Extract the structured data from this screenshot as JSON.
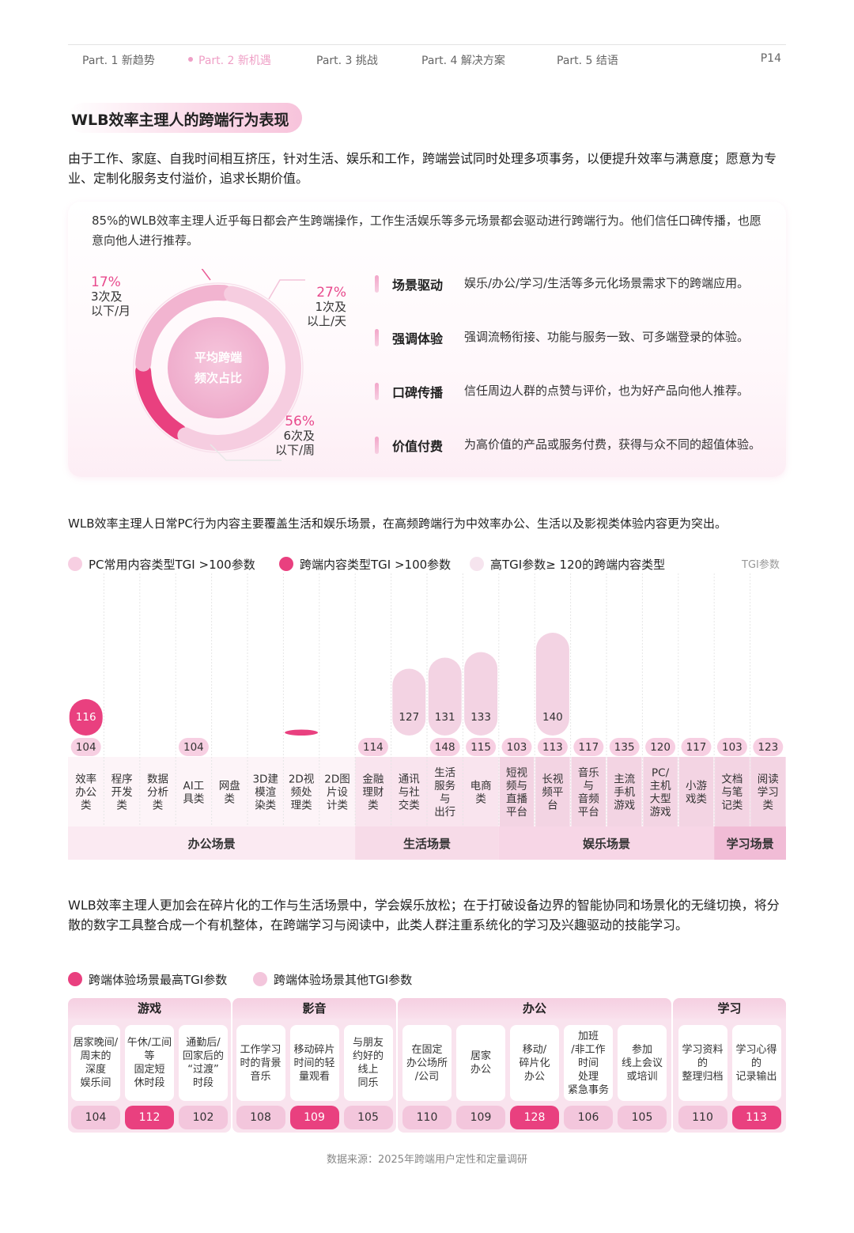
{
  "nav": {
    "items": [
      "Part. 1 新趋势",
      "Part. 2 新机遇",
      "Part. 3 挑战",
      "Part. 4 解决方案",
      "Part. 5 结语"
    ],
    "active_index": 1,
    "page": "P14",
    "active_color": "#ef9fc6"
  },
  "title": "WLB效率主理人的跨端行为表现",
  "intro": "由于工作、家庭、自我时间相互挤压，针对生活、娱乐和工作，跨端尝试同时处理多项事务，以便提升效率与满意度；愿意为专业、定制化服务支付溢价，追求长期价值。",
  "card": {
    "text": "85%的WLB效率主理人近乎每日都会产生跨端操作，工作生活娱乐等多元场景都会驱动进行跨端行为。他们信任口碑传播，也愿意向他人进行推荐。",
    "donut_center_line1": "平均跨端",
    "donut_center_line2": "频次占比",
    "features": [
      {
        "title": "场景驱动",
        "desc": "娱乐/办公/学习/生活等多元化场景需求下的跨端应用。"
      },
      {
        "title": "强调体验",
        "desc": "强调流畅衔接、功能与服务一致、可多端登录的体验。"
      },
      {
        "title": "口碑传播",
        "desc": "信任周边人群的点赞与评价，也为好产品向他人推荐。"
      },
      {
        "title": "价值付费",
        "desc": "为高价值的产品或服务付费，获得与众不同的超值体验。"
      }
    ]
  },
  "para2": "WLB效率主理人日常PC行为内容主要覆盖生活和娱乐场景，在高频跨端行为中效率办公、生活以及影视类体验内容更为突出。",
  "chart1_legend": [
    {
      "label": "PC常用内容类型TGI >100参数",
      "color": "#f7cfe2"
    },
    {
      "label": "跨端内容类型TGI >100参数",
      "color": "#e9407f"
    },
    {
      "label": "高TGI参数≥ 120的跨端内容类型",
      "color": "#f6e4ee"
    }
  ],
  "chart1_unit": "TGI参数",
  "para3": "WLB效率主理人更加会在碎片化的工作与生活场景中，学会娱乐放松；在于打破设备边界的智能协同和场景化的无缝切换，将分散的数字工具整合成一个有机整体，在跨端学习与阅读中，此类人群注重系统化的学习及兴趣驱动的技能学习。",
  "chart2_legend": [
    {
      "label": "跨端体验场景最高TGI参数",
      "color": "#e9407f"
    },
    {
      "label": "跨端体验场景其他TGI参数",
      "color": "#f3c6dc"
    }
  ],
  "chart_data": [
    {
      "type": "pie",
      "categories": [
        "3次及以下/月",
        "1次及以上/天",
        "6次及以下/周"
      ],
      "values": [
        17,
        27,
        56
      ],
      "labels": [
        "17%",
        "27%",
        "56%"
      ],
      "label_lines": [
        [
          "3次及",
          "以下/月"
        ],
        [
          "1次及",
          "以上/天"
        ],
        [
          "6次及",
          "以下/周"
        ]
      ]
    },
    {
      "type": "bar",
      "categories": [
        {
          "label": "效率办公类",
          "lines": [
            "效率",
            "办公",
            "类"
          ]
        },
        {
          "label": "程序开发类",
          "lines": [
            "程序",
            "开发",
            "类"
          ]
        },
        {
          "label": "数据分析类",
          "lines": [
            "数据",
            "分析",
            "类"
          ]
        },
        {
          "label": "AI工具类",
          "lines": [
            "AI工",
            "具类"
          ]
        },
        {
          "label": "网盘类",
          "lines": [
            "网盘",
            "类"
          ]
        },
        {
          "label": "3D建模渲染类",
          "lines": [
            "3D建",
            "模渲",
            "染类"
          ]
        },
        {
          "label": "2D视频处理类",
          "lines": [
            "2D视",
            "频处",
            "理类"
          ]
        },
        {
          "label": "2D图片设计类",
          "lines": [
            "2D图",
            "片设",
            "计类"
          ]
        },
        {
          "label": "金融理财类",
          "lines": [
            "金融",
            "理财",
            "类"
          ]
        },
        {
          "label": "通讯与社交类",
          "lines": [
            "通讯",
            "与社",
            "交类"
          ]
        },
        {
          "label": "生活服务与出行",
          "lines": [
            "生活",
            "服务",
            "与",
            "出行"
          ]
        },
        {
          "label": "电商类",
          "lines": [
            "电商",
            "类"
          ]
        },
        {
          "label": "短视频与直播平台",
          "lines": [
            "短视",
            "频与",
            "直播",
            "平台"
          ]
        },
        {
          "label": "长视频平台",
          "lines": [
            "长视",
            "频平",
            "台"
          ]
        },
        {
          "label": "音乐与音频平台",
          "lines": [
            "音乐",
            "与",
            "音频",
            "平台"
          ]
        },
        {
          "label": "主流手机游戏",
          "lines": [
            "主流",
            "手机",
            "游戏"
          ]
        },
        {
          "label": "PC/主机大型游戏",
          "lines": [
            "PC/",
            "主机",
            "大型",
            "游戏"
          ]
        },
        {
          "label": "小游戏类",
          "lines": [
            "小游",
            "戏类"
          ]
        },
        {
          "label": "文档与笔记类",
          "lines": [
            "文档",
            "与笔",
            "记类"
          ]
        },
        {
          "label": "阅读学习类",
          "lines": [
            "阅读",
            "学习",
            "类"
          ]
        }
      ],
      "series": [
        {
          "name": "PC常用内容类型TGI >100参数",
          "values": [
            104,
            null,
            null,
            104,
            null,
            null,
            null,
            null,
            114,
            null,
            148,
            115,
            103,
            113,
            117,
            135,
            120,
            117,
            103,
            123
          ]
        },
        {
          "name": "跨端内容类型TGI >100参数",
          "values": [
            116,
            null,
            null,
            null,
            null,
            null,
            105,
            null,
            null,
            null,
            null,
            null,
            null,
            null,
            null,
            null,
            null,
            null,
            null,
            null
          ]
        },
        {
          "name": "高TGI参数≥ 120的跨端内容类型",
          "values": [
            null,
            null,
            null,
            null,
            null,
            null,
            null,
            null,
            null,
            127,
            131,
            133,
            null,
            140,
            null,
            null,
            null,
            null,
            null,
            null
          ]
        }
      ],
      "groups": [
        {
          "label": "办公场景",
          "from": 0,
          "to": 7
        },
        {
          "label": "生活场景",
          "from": 8,
          "to": 11
        },
        {
          "label": "娱乐场景",
          "from": 12,
          "to": 17
        },
        {
          "label": "学习场景",
          "from": 18,
          "to": 19
        }
      ],
      "ylabel": "TGI参数"
    },
    {
      "type": "table",
      "groups": [
        {
          "label": "游戏",
          "items": [
            {
              "label": "居家晚间/周末的深度娱乐间",
              "lines": [
                "居家晚间/",
                "周末的",
                "深度",
                "娱乐间"
              ],
              "value": 104,
              "highest": false
            },
            {
              "label": "午休/工间等固定短休时段",
              "lines": [
                "午休/工间",
                "等",
                "固定短",
                "休时段"
              ],
              "value": 112,
              "highest": true
            },
            {
              "label": "通勤后/回家后的“过渡”时段",
              "lines": [
                "通勤后/",
                "回家后的",
                "“过渡”",
                "时段"
              ],
              "value": 102,
              "highest": false
            }
          ]
        },
        {
          "label": "影音",
          "items": [
            {
              "label": "工作学习时的背景音乐",
              "lines": [
                "工作学习",
                "时的背景",
                "音乐"
              ],
              "value": 108,
              "highest": false
            },
            {
              "label": "移动碎片时间的轻量观看",
              "lines": [
                "移动碎片",
                "时间的轻",
                "量观看"
              ],
              "value": 109,
              "highest": true
            },
            {
              "label": "与朋友约好的线上同乐",
              "lines": [
                "与朋友",
                "约好的",
                "线上",
                "同乐"
              ],
              "value": 105,
              "highest": false
            }
          ]
        },
        {
          "label": "办公",
          "items": [
            {
              "label": "在固定办公场所/公司",
              "lines": [
                "在固定",
                "办公场所",
                "/公司"
              ],
              "value": 110,
              "highest": false
            },
            {
              "label": "居家办公",
              "lines": [
                "居家",
                "办公"
              ],
              "value": 109,
              "highest": false
            },
            {
              "label": "移动/碎片化办公",
              "lines": [
                "移动/",
                "碎片化",
                "办公"
              ],
              "value": 128,
              "highest": true
            },
            {
              "label": "加班/非工作时间处理紧急事务",
              "lines": [
                "加班",
                "/非工作",
                "时间",
                "处理",
                "紧急事务"
              ],
              "value": 106,
              "highest": false
            },
            {
              "label": "参加线上会议或培训",
              "lines": [
                "参加",
                "线上会议",
                "或培训"
              ],
              "value": 105,
              "highest": false
            }
          ]
        },
        {
          "label": "学习",
          "items": [
            {
              "label": "学习资料的整理归档",
              "lines": [
                "学习资料",
                "的",
                "整理归档"
              ],
              "value": 110,
              "highest": false
            },
            {
              "label": "学习心得的记录输出",
              "lines": [
                "学习心得",
                "的",
                "记录输出"
              ],
              "value": 113,
              "highest": true
            }
          ]
        }
      ]
    }
  ],
  "source": "数据来源：2025年跨端用户定性和定量调研"
}
